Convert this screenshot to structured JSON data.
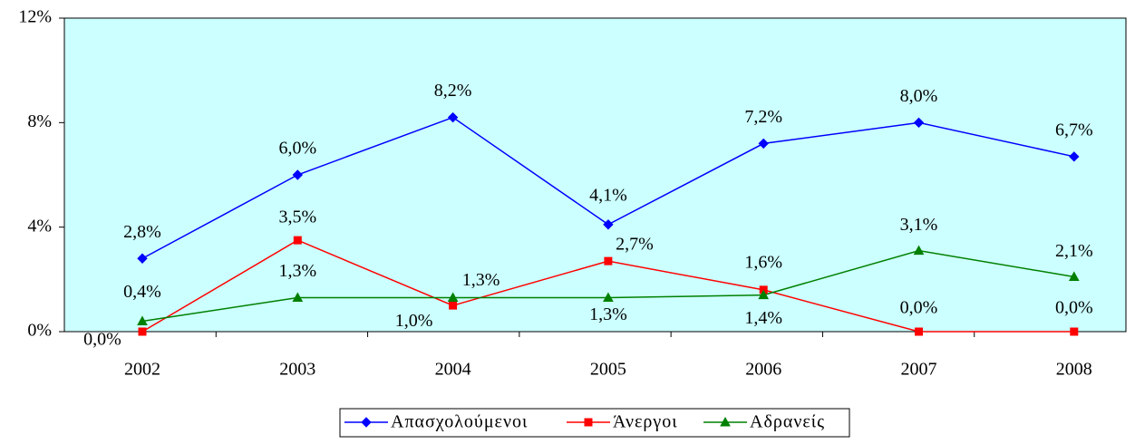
{
  "chart_data": {
    "type": "line",
    "categories": [
      "2002",
      "2003",
      "2004",
      "2005",
      "2006",
      "2007",
      "2008"
    ],
    "series": [
      {
        "name": "Απασχολούμενοι",
        "color": "#0000ff",
        "marker": "diamond",
        "values": [
          2.8,
          6.0,
          8.2,
          4.1,
          7.2,
          8.0,
          6.7
        ],
        "value_labels": [
          "2,8%",
          "6,0%",
          "8,2%",
          "4,1%",
          "7,2%",
          "8,0%",
          "6,7%"
        ]
      },
      {
        "name": "Άνεργοι",
        "color": "#ff0000",
        "marker": "square",
        "values": [
          0.0,
          3.5,
          1.0,
          2.7,
          1.6,
          0.0,
          0.0
        ],
        "value_labels": [
          "0,0%",
          "3,5%",
          "1,0%",
          "2,7%",
          "1,6%",
          "0,0%",
          "0,0%"
        ]
      },
      {
        "name": "Αδρανείς",
        "color": "#008000",
        "marker": "triangle",
        "values": [
          0.4,
          1.3,
          1.3,
          1.3,
          1.4,
          3.1,
          2.1
        ],
        "value_labels": [
          "0,4%",
          "1,3%",
          "1,3%",
          "1,3%",
          "1,4%",
          "3,1%",
          "2,1%"
        ]
      }
    ],
    "ylim": [
      0,
      12
    ],
    "yticks": [
      {
        "value": 0,
        "label": "0%"
      },
      {
        "value": 4,
        "label": "4%"
      },
      {
        "value": 8,
        "label": "8%"
      },
      {
        "value": 12,
        "label": "12%"
      }
    ],
    "plot_background": "#ccffff",
    "legend": "bottom"
  }
}
